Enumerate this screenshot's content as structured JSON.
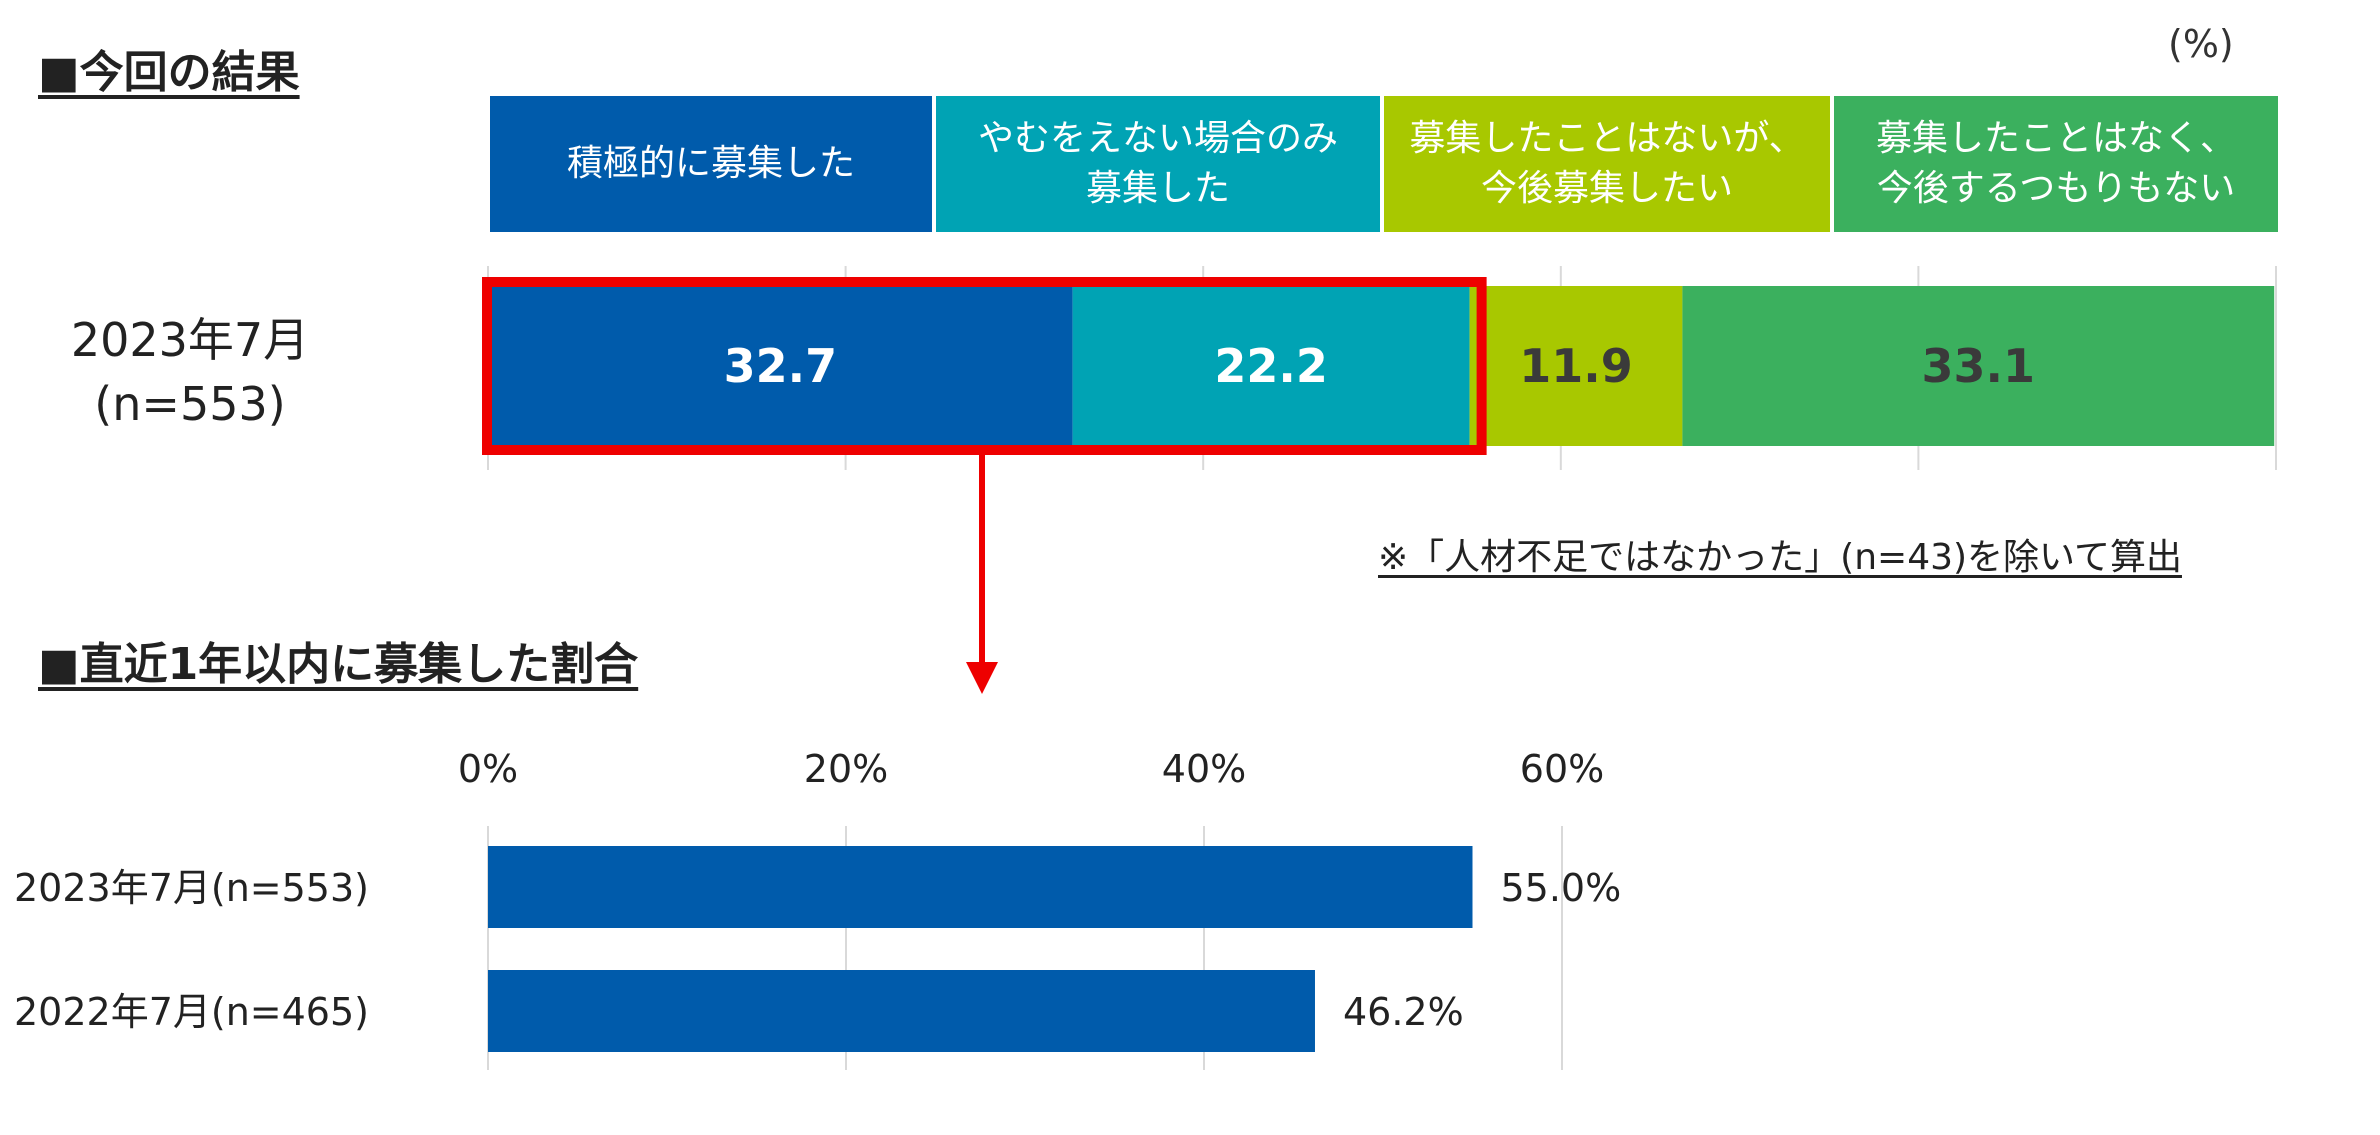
{
  "unit_label": "(%)",
  "section1": {
    "title": "■今回の結果"
  },
  "section2": {
    "title": "■直近1年以内に募集した割合"
  },
  "note": "※「人材不足ではなかった」(n=43)を除いて算出",
  "legend": [
    {
      "label": "積極的に募集した",
      "color": "#005bab"
    },
    {
      "label": "やむをえない場合のみ\n募集した",
      "color": "#00a3b4"
    },
    {
      "label": "募集したことはないが、\n今後募集したい",
      "color": "#a8c800"
    },
    {
      "label": "募集したことはなく、\n今後するつもりもない",
      "color": "#3bb05e"
    }
  ],
  "chart_data": [
    {
      "type": "bar",
      "orientation": "horizontal-stacked",
      "categories": [
        "2023年7月\n(n=553)"
      ],
      "series": [
        {
          "name": "積極的に募集した",
          "values": [
            32.7
          ],
          "color": "#005bab",
          "label_color": "#ffffff"
        },
        {
          "name": "やむをえない場合のみ募集した",
          "values": [
            22.2
          ],
          "color": "#00a3b4",
          "label_color": "#ffffff"
        },
        {
          "name": "募集したことはないが、今後募集したい",
          "values": [
            11.9
          ],
          "color": "#a8c800",
          "label_color": "#3a3a3a"
        },
        {
          "name": "募集したことはなく、今後するつもりもない",
          "values": [
            33.1
          ],
          "color": "#3bb05e",
          "label_color": "#3a3a3a"
        }
      ],
      "xlim": [
        0,
        100
      ],
      "grid": true,
      "highlight": "積極的に募集した + やむをえない場合のみ募集した"
    },
    {
      "type": "bar",
      "orientation": "horizontal",
      "categories": [
        "2023年7月(n=553)",
        "2022年7月(n=465)"
      ],
      "values": [
        55.0,
        46.2
      ],
      "value_labels": [
        "55.0%",
        "46.2%"
      ],
      "color": "#005bab",
      "xticks": [
        "0%",
        "20%",
        "40%",
        "60%"
      ],
      "xlim": [
        0,
        60
      ],
      "grid": true
    }
  ]
}
